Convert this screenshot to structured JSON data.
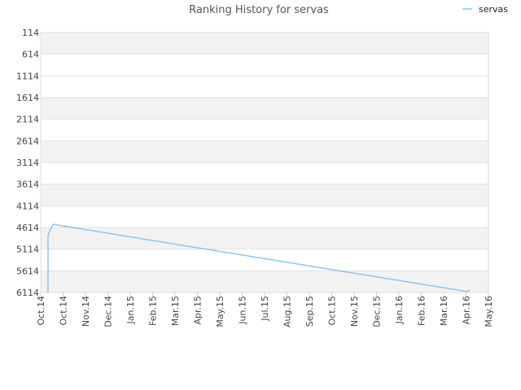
{
  "chart_data": {
    "type": "line",
    "title": "Ranking History for servas",
    "xlabel": "",
    "ylabel": "",
    "y_inverted": true,
    "grid": true,
    "legend": {
      "position": "top-right",
      "entries": [
        "servas"
      ]
    },
    "y_ticks": [
      "114",
      "614",
      "1114",
      "1614",
      "2114",
      "2614",
      "3114",
      "3614",
      "4114",
      "4614",
      "5114",
      "5614",
      "6114"
    ],
    "x_ticks": [
      "Oct.14",
      "Oct.14",
      "Nov.14",
      "Dec.14",
      "Jan.15",
      "Feb.15",
      "Mar.15",
      "Apr.15",
      "May.15",
      "Jun.15",
      "Jul.15",
      "Aug.15",
      "Sep.15",
      "Oct.15",
      "Nov.15",
      "Dec.15",
      "Jan.16",
      "Feb.16",
      "Mar.16",
      "Apr.16",
      "May.16"
    ],
    "series": [
      {
        "name": "servas",
        "color": "#90c3f0",
        "points": [
          {
            "x": "2014-09-11",
            "y": 6114
          },
          {
            "x": "2014-09-11",
            "y": 4800
          },
          {
            "x": "2014-09-13",
            "y": 4700
          },
          {
            "x": "2014-09-18",
            "y": 4540
          },
          {
            "x": "2016-04-01",
            "y": 6090
          },
          {
            "x": "2016-04-06",
            "y": 6060
          }
        ]
      }
    ]
  }
}
